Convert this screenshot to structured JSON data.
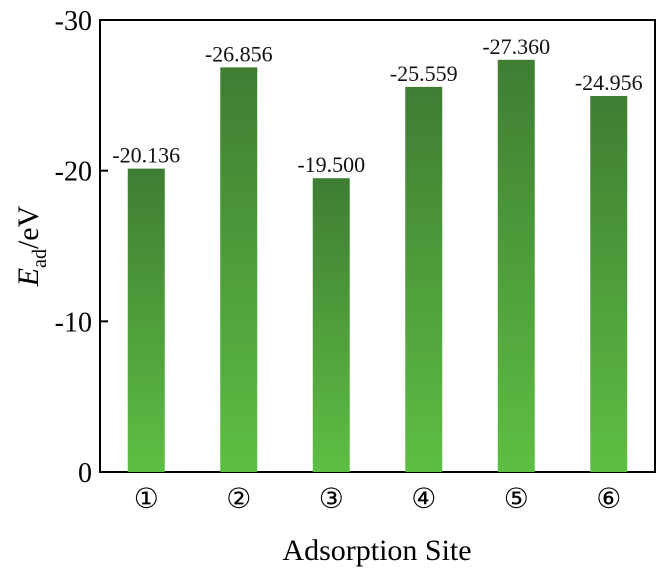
{
  "chart_data": {
    "type": "bar",
    "categories": [
      "①",
      "②",
      "③",
      "④",
      "⑤",
      "⑥"
    ],
    "values": [
      -20.136,
      -26.856,
      -19.5,
      -25.559,
      -27.36,
      -24.956
    ],
    "data_labels": [
      "-20.136",
      "-26.856",
      "-19.500",
      "-25.559",
      "-27.360",
      "-24.956"
    ],
    "yticks": [
      0,
      -10,
      -20,
      -30
    ],
    "ytick_labels": [
      "0",
      "-10",
      "-20",
      "-30"
    ],
    "ylim": [
      0,
      -30
    ],
    "y_axis_inverted": true,
    "xlabel": "Adsorption Site",
    "ylabel": {
      "main": "E",
      "subscript": "ad",
      "unit": "/eV"
    },
    "grid": false,
    "bar_color_top": "#3f7d33",
    "bar_color_bottom": "#5ebe43"
  }
}
